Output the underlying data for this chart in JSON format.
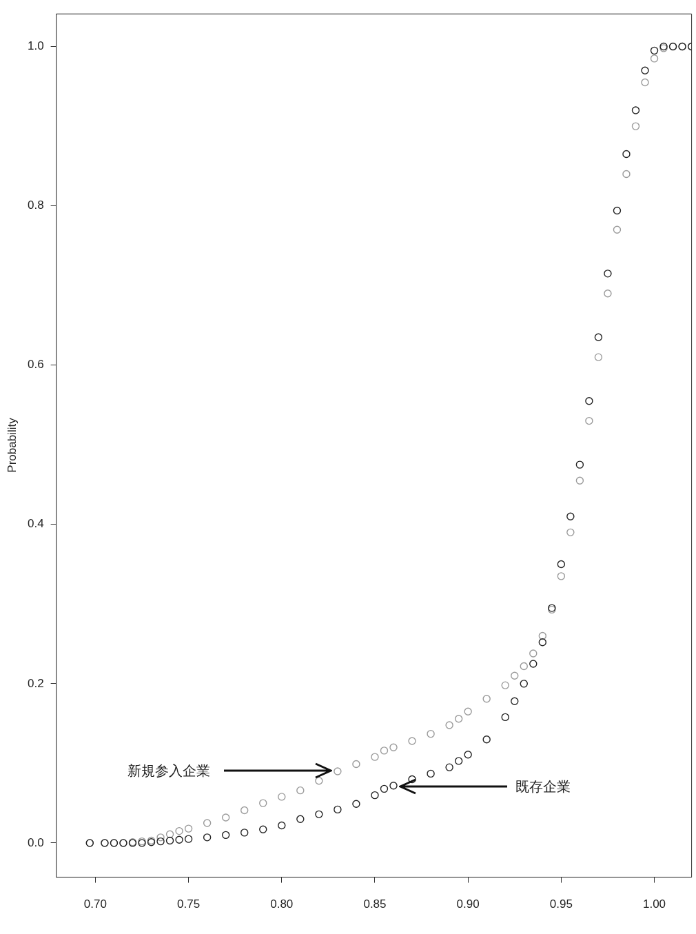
{
  "chart_data": {
    "type": "scatter",
    "ylabel": "Probability",
    "marker": "circle",
    "grid": false,
    "legend": false,
    "xlim": [
      0.679,
      1.02
    ],
    "ylim": [
      -0.043,
      1.041
    ],
    "xticks": [
      {
        "value": 0.7,
        "label": "0.70"
      },
      {
        "value": 0.75,
        "label": "0.75"
      },
      {
        "value": 0.8,
        "label": "0.80"
      },
      {
        "value": 0.85,
        "label": "0.85"
      },
      {
        "value": 0.9,
        "label": "0.90"
      },
      {
        "value": 0.95,
        "label": "0.95"
      },
      {
        "value": 1.0,
        "label": "1.00"
      }
    ],
    "yticks": [
      {
        "value": 0,
        "label": "0.0"
      },
      {
        "value": 0.2,
        "label": "0.2"
      },
      {
        "value": 0.4,
        "label": "0.4"
      },
      {
        "value": 0.6,
        "label": "0.6"
      },
      {
        "value": 0.8,
        "label": "0.8"
      },
      {
        "value": 1.0,
        "label": "1.0"
      }
    ],
    "series": [
      {
        "color": "#9a9a9a",
        "x": [
          0.697,
          0.705,
          0.71,
          0.715,
          0.72,
          0.725,
          0.73,
          0.735,
          0.74,
          0.745,
          0.75,
          0.76,
          0.77,
          0.78,
          0.79,
          0.8,
          0.81,
          0.82,
          0.83,
          0.84,
          0.85,
          0.855,
          0.86,
          0.87,
          0.88,
          0.89,
          0.895,
          0.9,
          0.91,
          0.92,
          0.925,
          0.93,
          0.935,
          0.94,
          0.945,
          0.95,
          0.955,
          0.96,
          0.965,
          0.97,
          0.975,
          0.98,
          0.985,
          0.99,
          0.995,
          1.0,
          1.005,
          1.01,
          1.015,
          1.02
        ],
        "values": [
          0,
          0,
          0,
          0,
          0.001,
          0.002,
          0.003,
          0.007,
          0.011,
          0.015,
          0.018,
          0.025,
          0.032,
          0.041,
          0.05,
          0.058,
          0.066,
          0.078,
          0.09,
          0.099,
          0.108,
          0.116,
          0.12,
          0.128,
          0.137,
          0.148,
          0.156,
          0.165,
          0.181,
          0.198,
          0.21,
          0.222,
          0.238,
          0.26,
          0.293,
          0.335,
          0.39,
          0.455,
          0.53,
          0.61,
          0.69,
          0.77,
          0.84,
          0.9,
          0.955,
          0.985,
          0.998,
          1.0,
          1.0,
          1.0
        ]
      },
      {
        "color": "#222222",
        "x": [
          0.697,
          0.705,
          0.71,
          0.715,
          0.72,
          0.725,
          0.73,
          0.735,
          0.74,
          0.745,
          0.75,
          0.76,
          0.77,
          0.78,
          0.79,
          0.8,
          0.81,
          0.82,
          0.83,
          0.84,
          0.85,
          0.855,
          0.86,
          0.87,
          0.88,
          0.89,
          0.895,
          0.9,
          0.91,
          0.92,
          0.925,
          0.93,
          0.935,
          0.94,
          0.945,
          0.95,
          0.955,
          0.96,
          0.965,
          0.97,
          0.975,
          0.98,
          0.985,
          0.99,
          0.995,
          1.0,
          1.005,
          1.01,
          1.015,
          1.02
        ],
        "values": [
          0,
          0,
          0,
          0,
          0,
          0,
          0.001,
          0.002,
          0.003,
          0.004,
          0.005,
          0.007,
          0.01,
          0.013,
          0.017,
          0.022,
          0.03,
          0.036,
          0.042,
          0.049,
          0.06,
          0.068,
          0.072,
          0.08,
          0.087,
          0.095,
          0.103,
          0.111,
          0.13,
          0.158,
          0.178,
          0.2,
          0.225,
          0.252,
          0.295,
          0.35,
          0.41,
          0.475,
          0.555,
          0.635,
          0.715,
          0.794,
          0.865,
          0.92,
          0.97,
          0.995,
          1.0,
          1.0,
          1.0,
          1.0
        ]
      }
    ],
    "annotations": [
      "新規参入企業",
      "既存企業"
    ]
  }
}
